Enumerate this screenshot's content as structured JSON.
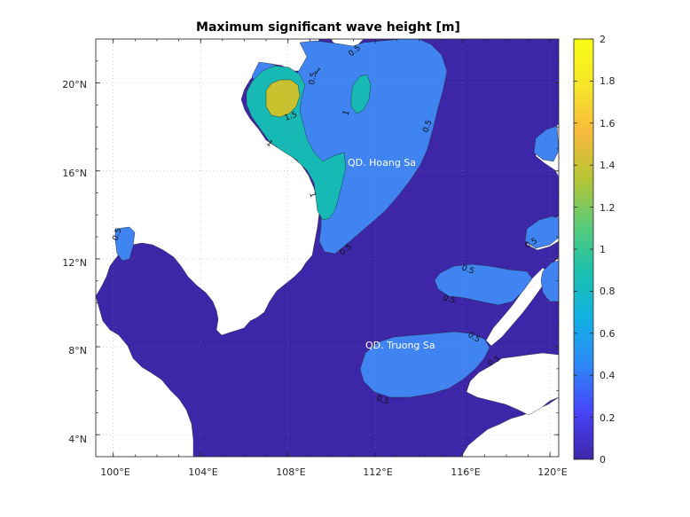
{
  "title": "Maximum significant wave height [m]",
  "x_ticks": [
    "100°E",
    "104°E",
    "108°E",
    "112°E",
    "116°E",
    "120°E"
  ],
  "y_ticks": [
    "4°N",
    "8°N",
    "12°N",
    "16°N",
    "20°N"
  ],
  "colorbar": {
    "ticks": [
      "2",
      "1.8",
      "1.6",
      "1.4",
      "1.2",
      "1",
      "0.8",
      "0.6",
      "0.4",
      "0.2",
      "0"
    ],
    "min": 0,
    "max": 2,
    "colormap": "parula",
    "stops": [
      "#3e26a8",
      "#4743f8",
      "#2e87f7",
      "#13b0e3",
      "#1ac0b0",
      "#58cb79",
      "#b5c434",
      "#f8ba3d",
      "#f6e62a",
      "#f9fb15"
    ]
  },
  "map": {
    "lon_range": [
      99.2,
      120.4
    ],
    "lat_range": [
      3.0,
      22.0
    ],
    "colors": {
      "land": "#ffffff",
      "level_0": "#3e26a8",
      "level_05": "#3f84f0",
      "level_1": "#17b9b4",
      "level_15": "#c8c22e"
    }
  },
  "contour_labels": [
    "0.5",
    "0.5",
    "0.5",
    "0.5",
    "0.5",
    "0.5",
    "0.5",
    "0.5",
    "0.5",
    "0.5",
    "0.5",
    "1",
    "1",
    "1",
    "1",
    "1.5"
  ],
  "region_labels": {
    "hoang_sa": "QD. Hoang Sa",
    "truong_sa": "QD. Truong Sa"
  }
}
